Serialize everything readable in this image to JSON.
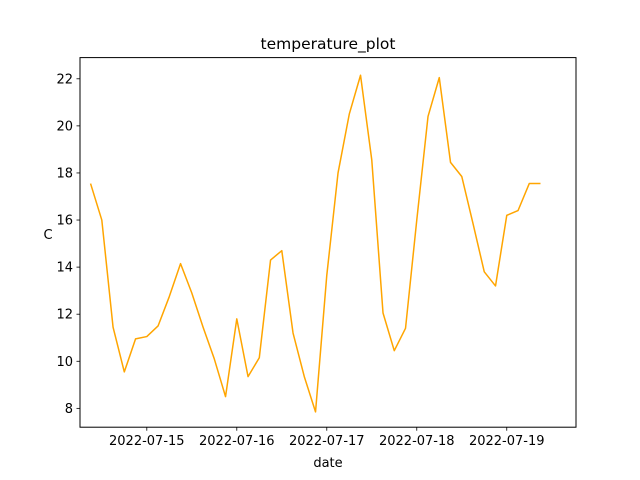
{
  "chart_data": {
    "type": "line",
    "title": "temperature_plot",
    "xlabel": "date",
    "ylabel": "C",
    "x_tick_labels": [
      "2022-07-15",
      "2022-07-16",
      "2022-07-17",
      "2022-07-18",
      "2022-07-19"
    ],
    "y_ticks": [
      8,
      10,
      12,
      14,
      16,
      18,
      20,
      22
    ],
    "ylim": [
      7.2,
      22.9
    ],
    "xlim": [
      "2022-07-14 06:11",
      "2022-07-19 18:28"
    ],
    "grid": false,
    "legend": false,
    "series": [
      {
        "color": "#ffa500",
        "x": [
          "2022-07-14 09:00",
          "2022-07-14 12:00",
          "2022-07-14 15:00",
          "2022-07-14 18:00",
          "2022-07-14 21:00",
          "2022-07-15 00:00",
          "2022-07-15 03:00",
          "2022-07-15 06:00",
          "2022-07-15 09:00",
          "2022-07-15 12:00",
          "2022-07-15 15:00",
          "2022-07-15 18:00",
          "2022-07-15 21:00",
          "2022-07-16 00:00",
          "2022-07-16 03:00",
          "2022-07-16 06:00",
          "2022-07-16 09:00",
          "2022-07-16 12:00",
          "2022-07-16 15:00",
          "2022-07-16 18:00",
          "2022-07-16 21:00",
          "2022-07-17 00:00",
          "2022-07-17 03:00",
          "2022-07-17 06:00",
          "2022-07-17 09:00",
          "2022-07-17 12:00",
          "2022-07-17 15:00",
          "2022-07-17 18:00",
          "2022-07-17 21:00",
          "2022-07-18 00:00",
          "2022-07-18 03:00",
          "2022-07-18 06:00",
          "2022-07-18 09:00",
          "2022-07-18 12:00",
          "2022-07-18 15:00",
          "2022-07-18 18:00",
          "2022-07-18 21:00",
          "2022-07-19 00:00",
          "2022-07-19 03:00",
          "2022-07-19 06:00",
          "2022-07-19 09:00"
        ],
        "y": [
          17.55,
          16.0,
          11.45,
          9.55,
          10.95,
          11.05,
          11.5,
          12.75,
          14.15,
          12.9,
          11.45,
          10.1,
          8.5,
          11.8,
          9.35,
          10.15,
          14.3,
          14.7,
          11.2,
          9.35,
          7.85,
          13.65,
          18.0,
          20.5,
          22.15,
          18.55,
          12.05,
          10.45,
          11.4,
          16.0,
          20.4,
          22.05,
          18.45,
          17.85,
          15.85,
          13.8,
          13.2,
          16.2,
          16.4,
          17.55,
          17.55
        ]
      }
    ]
  }
}
